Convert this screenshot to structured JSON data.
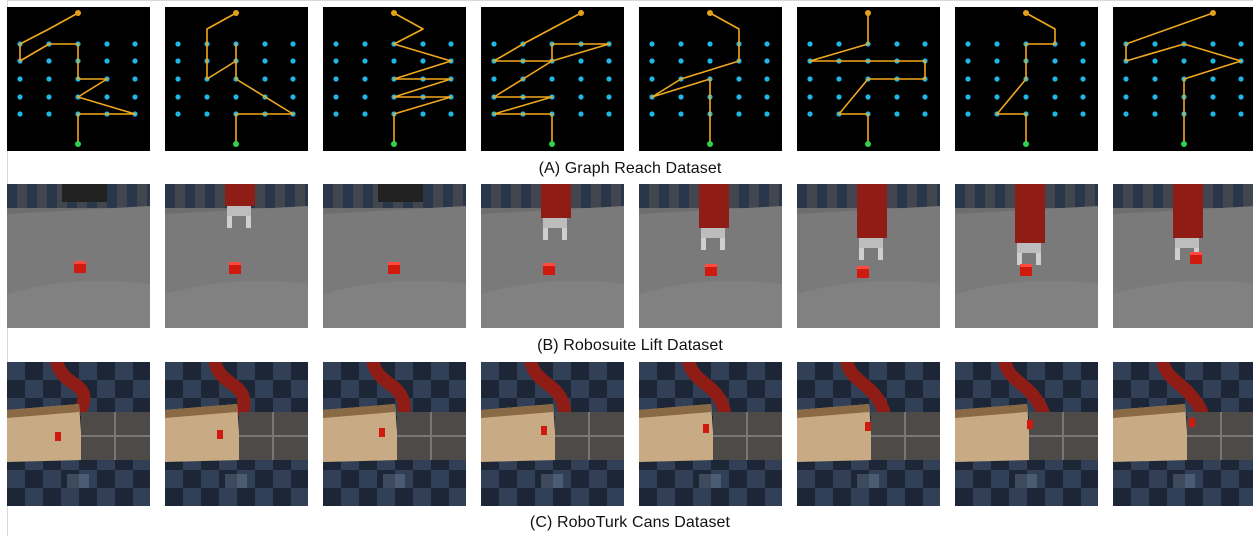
{
  "rows": [
    {
      "id": "graph-reach",
      "caption": "(A) Graph Reach Dataset"
    },
    {
      "id": "robosuite-lift",
      "caption": "(B) Robosuite Lift Dataset"
    },
    {
      "id": "roboturk-cans",
      "caption": "(C) RoboTurk Cans Dataset"
    }
  ],
  "colors": {
    "graph_background": "#000000",
    "graph_node": "#1fb8e6",
    "graph_start": "#e3a21a",
    "graph_goal": "#2fd14f",
    "graph_path": "#f2a81d",
    "robot_arm": "#8f1d16",
    "cube": "#d01a10",
    "floor": "#7a7a7a",
    "bin_wood": "#c8ab84",
    "checker_dark": "#1d2636",
    "checker_light": "#3a4c64"
  }
}
